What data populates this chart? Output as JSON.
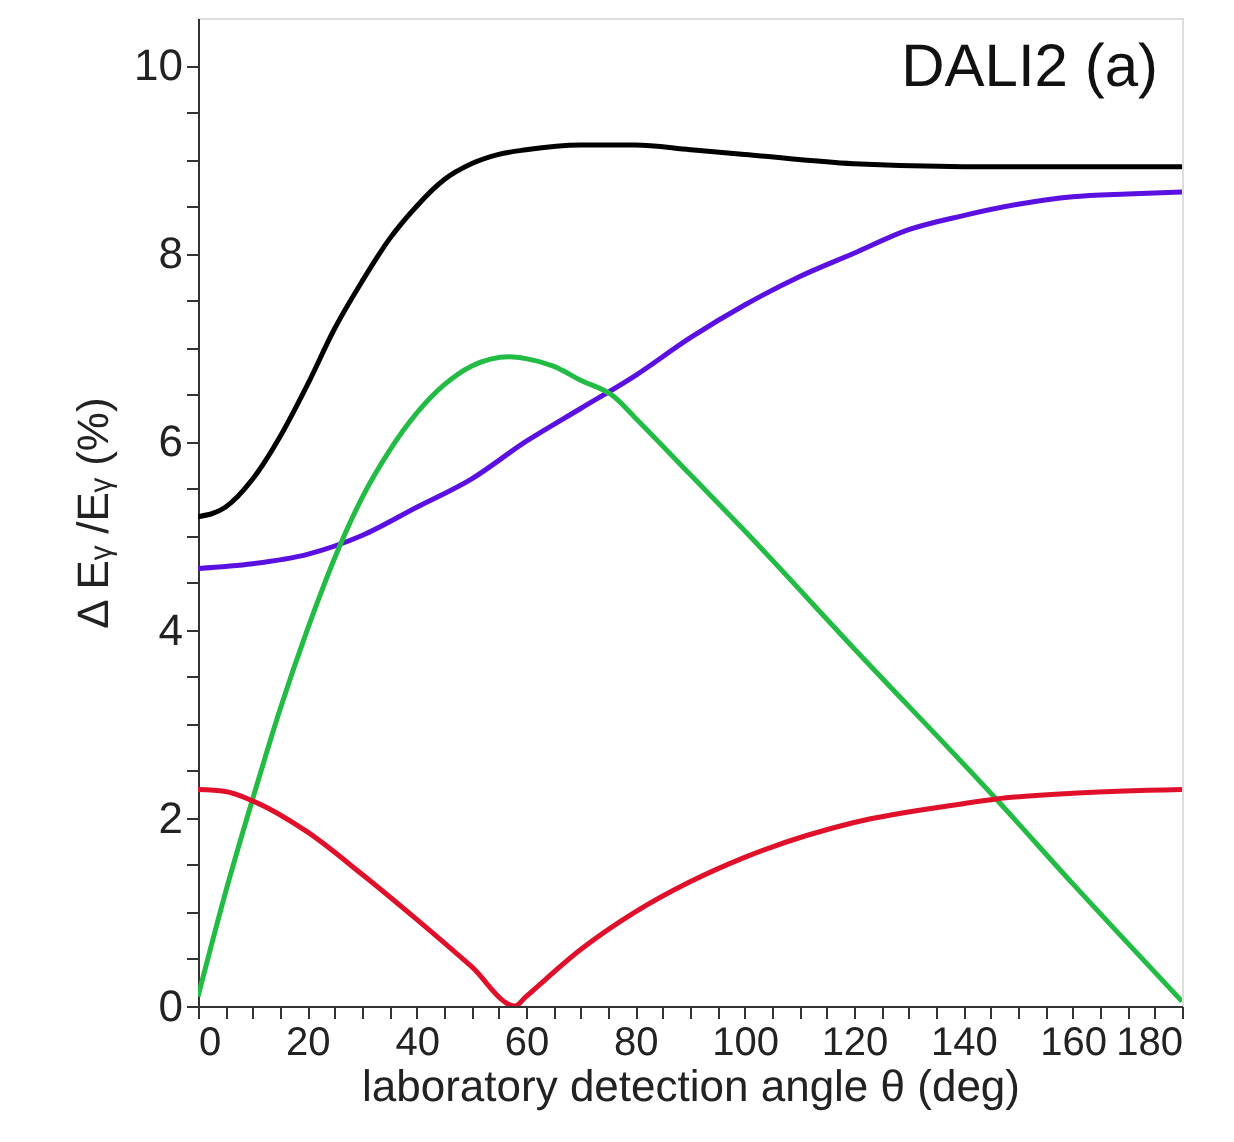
{
  "chart_data": {
    "type": "line",
    "xlabel": "laboratory detection angle θ (deg)",
    "ylabel": "Δ Eᵧ /Eᵧ (%)",
    "annotations": [
      "DALI2  (a)"
    ],
    "xlim": [
      0,
      180
    ],
    "ylim": [
      0,
      10.5
    ],
    "xticks": [
      0,
      {
        "value": 5,
        "label": null
      },
      {
        "value": 10,
        "label": null
      },
      {
        "value": 15,
        "label": null
      },
      20,
      {
        "value": 25,
        "label": null
      },
      {
        "value": 30,
        "label": null
      },
      {
        "value": 35,
        "label": null
      },
      40,
      {
        "value": 45,
        "label": null
      },
      {
        "value": 50,
        "label": null
      },
      {
        "value": 55,
        "label": null
      },
      60,
      {
        "value": 65,
        "label": null
      },
      {
        "value": 70,
        "label": null
      },
      {
        "value": 75,
        "label": null
      },
      80,
      {
        "value": 85,
        "label": null
      },
      {
        "value": 90,
        "label": null
      },
      {
        "value": 95,
        "label": null
      },
      100,
      {
        "value": 105,
        "label": null
      },
      {
        "value": 110,
        "label": null
      },
      {
        "value": 115,
        "label": null
      },
      120,
      {
        "value": 125,
        "label": null
      },
      {
        "value": 130,
        "label": null
      },
      {
        "value": 135,
        "label": null
      },
      140,
      {
        "value": 145,
        "label": null
      },
      {
        "value": 150,
        "label": null
      },
      {
        "value": 155,
        "label": null
      },
      160,
      {
        "value": 165,
        "label": null
      },
      {
        "value": 170,
        "label": null
      },
      {
        "value": 175,
        "label": null
      },
      180
    ],
    "yticks": [
      0,
      {
        "value": 0.5,
        "label": null
      },
      {
        "value": 1,
        "label": null
      },
      {
        "value": 1.5,
        "label": null
      },
      2,
      {
        "value": 2.5,
        "label": null
      },
      {
        "value": 3,
        "label": null
      },
      {
        "value": 3.5,
        "label": null
      },
      4,
      {
        "value": 4.5,
        "label": null
      },
      {
        "value": 5,
        "label": null
      },
      {
        "value": 5.5,
        "label": null
      },
      6,
      {
        "value": 6.5,
        "label": null
      },
      {
        "value": 7,
        "label": null
      },
      {
        "value": 7.5,
        "label": null
      },
      8,
      {
        "value": 8.5,
        "label": null
      },
      {
        "value": 9,
        "label": null
      },
      {
        "value": 9.5,
        "label": null
      },
      10
    ],
    "grid": false,
    "marker": "none",
    "line_style": "solid",
    "series": [
      {
        "color": "#000000",
        "x": [
          0,
          5,
          10,
          15,
          20,
          25,
          30,
          35,
          40,
          45,
          50,
          55,
          60,
          70,
          80,
          90,
          100,
          120,
          140,
          160,
          180
        ],
        "values": [
          5.2,
          5.3,
          5.6,
          6.05,
          6.6,
          7.2,
          7.7,
          8.15,
          8.5,
          8.78,
          8.95,
          9.05,
          9.1,
          9.15,
          9.15,
          9.1,
          9.05,
          8.95,
          8.92,
          8.92,
          8.92
        ]
      },
      {
        "color": "#5a10e0",
        "x": [
          0,
          10,
          20,
          30,
          40,
          50,
          60,
          70,
          80,
          90,
          100,
          110,
          120,
          130,
          140,
          150,
          160,
          170,
          180
        ],
        "values": [
          4.65,
          4.7,
          4.8,
          5.0,
          5.3,
          5.6,
          6.0,
          6.35,
          6.7,
          7.1,
          7.45,
          7.75,
          8.0,
          8.25,
          8.4,
          8.52,
          8.6,
          8.63,
          8.65
        ]
      },
      {
        "color": "#22bb44",
        "x": [
          0,
          5,
          10,
          15,
          20,
          26,
          30,
          35,
          40,
          45,
          50,
          57,
          60,
          65,
          70,
          76,
          80,
          90,
          100,
          120,
          146,
          160,
          180
        ],
        "values": [
          0.1,
          1.2,
          2.2,
          3.15,
          4.0,
          4.9,
          5.4,
          5.9,
          6.3,
          6.6,
          6.8,
          6.9,
          6.88,
          6.8,
          6.65,
          6.48,
          6.25,
          5.65,
          5.05,
          3.8,
          2.2,
          1.3,
          0.05
        ]
      },
      {
        "color": "#e0102a",
        "x": [
          0,
          5,
          10,
          20,
          30,
          40,
          50,
          58,
          60,
          70,
          80,
          90,
          100,
          120,
          140,
          146,
          160,
          180
        ],
        "values": [
          2.3,
          2.28,
          2.18,
          1.85,
          1.4,
          0.92,
          0.42,
          0.0,
          0.1,
          0.6,
          1.0,
          1.32,
          1.58,
          1.95,
          2.15,
          2.2,
          2.26,
          2.3
        ]
      }
    ]
  }
}
